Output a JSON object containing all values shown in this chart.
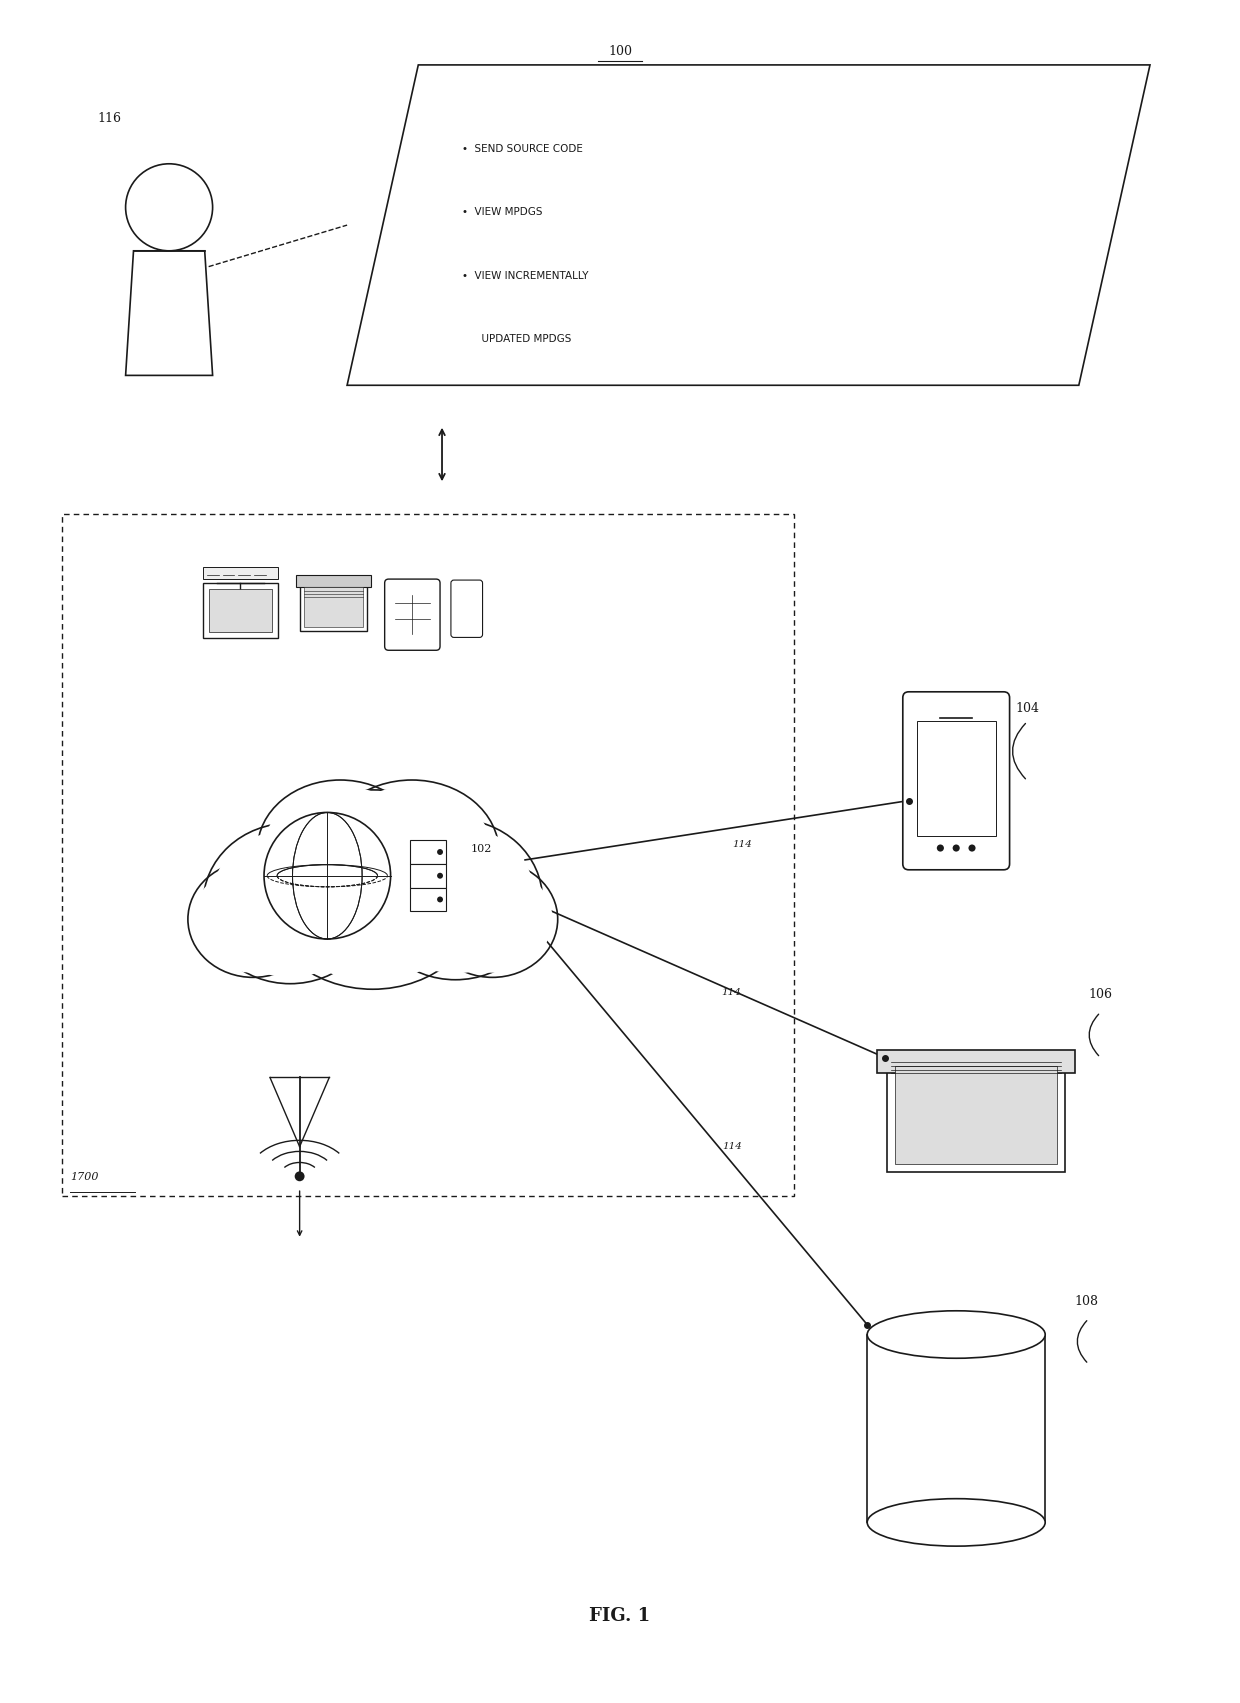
{
  "fig_label": "FIG. 1",
  "bg_color": "#ffffff",
  "line_color": "#1a1a1a",
  "label_100": "100",
  "label_102": "102",
  "label_104": "104",
  "label_106": "106",
  "label_108": "108",
  "label_114": "114",
  "label_116": "116",
  "label_1700": "1700",
  "screen_text": [
    "•  SEND SOURCE CODE",
    "•  VIEW MPDGS",
    "•  VIEW INCREMENTALLY",
    "      UPDATED MPDGS"
  ]
}
